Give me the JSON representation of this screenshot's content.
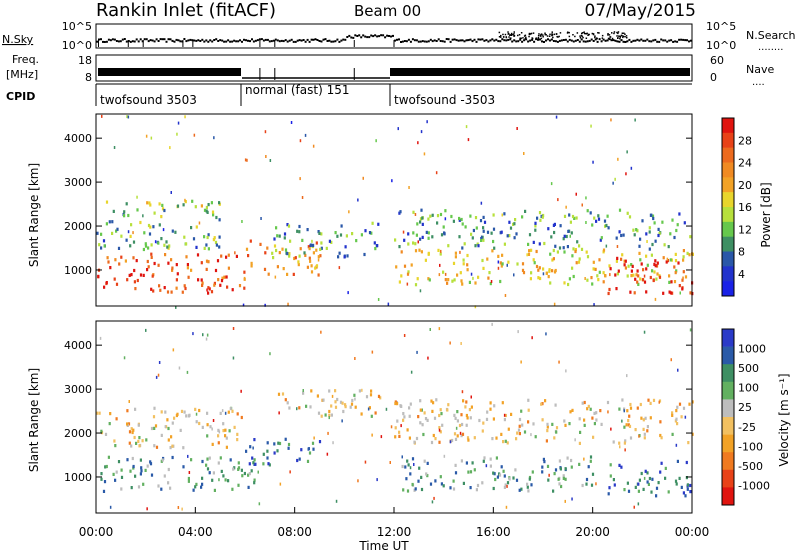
{
  "header": {
    "station": "Rankin Inlet (fitACF)",
    "beam": "Beam 00",
    "date": "07/May/2015"
  },
  "top_panels": {
    "nsky_label": "N.Sky",
    "nsky_ticks": [
      "10^5",
      "10^0"
    ],
    "nsky_right_ticks": [
      "10^5",
      "10^0"
    ],
    "nsearch_label": "N.Search",
    "freq_label_1": "Freq.",
    "freq_label_2": "[MHz]",
    "freq_ticks": [
      "18",
      "8"
    ],
    "nave_ticks": [
      "60",
      "0"
    ],
    "nave_label": "Nave",
    "cpid_label": "CPID",
    "cpid_segments": [
      {
        "label": "twofsound 3503",
        "start_h": 0,
        "end_h": 6
      },
      {
        "label": "normal (fast) 151",
        "start_h": 6,
        "end_h": 12
      },
      {
        "label": "twofsound -3503",
        "start_h": 12,
        "end_h": 24
      }
    ]
  },
  "chart_data": [
    {
      "type": "heatmap",
      "name": "power",
      "ylabel": "Slant Range [km]",
      "xlim": [
        0,
        24
      ],
      "ylim": [
        180,
        4550
      ],
      "yticks": [
        1000,
        2000,
        3000,
        4000
      ],
      "colorbar": {
        "label": "Power [dB]",
        "ticks": [
          "4",
          "8",
          "12",
          "16",
          "20",
          "24",
          "28"
        ],
        "colors": [
          "#1a22e6",
          "#2233cc",
          "#2a57a8",
          "#3e8f63",
          "#66c84c",
          "#b7e03c",
          "#e8d52c",
          "#f2a226",
          "#f08a22",
          "#ec6a1e",
          "#e84218",
          "#e0140f"
        ]
      },
      "features": [
        {
          "h0": 0.0,
          "h1": 6.2,
          "r0": 500,
          "r1": 1400,
          "level": 0.85
        },
        {
          "h0": 0.0,
          "h1": 5.0,
          "r0": 1400,
          "r1": 2000,
          "level": 0.35
        },
        {
          "h0": 0.3,
          "h1": 5.0,
          "r0": 2000,
          "r1": 2600,
          "level": 0.4
        },
        {
          "h0": 6.0,
          "h1": 9.0,
          "r0": 900,
          "r1": 1700,
          "level": 0.7
        },
        {
          "h0": 7.0,
          "h1": 11.5,
          "r0": 1300,
          "r1": 2100,
          "level": 0.3
        },
        {
          "h0": 12.0,
          "h1": 24.0,
          "r0": 700,
          "r1": 1500,
          "level": 0.55
        },
        {
          "h0": 12.0,
          "h1": 24.0,
          "r0": 1500,
          "r1": 2400,
          "level": 0.3
        },
        {
          "h0": 20.5,
          "h1": 24.0,
          "r0": 450,
          "r1": 1300,
          "level": 0.95
        }
      ]
    },
    {
      "type": "heatmap",
      "name": "velocity",
      "ylabel": "Slant Range [km]",
      "xlabel": "Time UT",
      "xlim": [
        0,
        24
      ],
      "ylim": [
        180,
        4550
      ],
      "yticks": [
        1000,
        2000,
        3000,
        4000
      ],
      "xticks": [
        "00:00",
        "04:00",
        "08:00",
        "12:00",
        "16:00",
        "20:00",
        "00:00"
      ],
      "colorbar": {
        "label": "Velocity [m s⁻¹]",
        "ticks": [
          "1000",
          "500",
          "100",
          "25",
          "-25",
          "-100",
          "-500",
          "-1000"
        ],
        "colors": [
          "#2a3ac8",
          "#2a5aa8",
          "#3e8f63",
          "#62b060",
          "#bdbdbd",
          "#f2c060",
          "#f2a226",
          "#f07a20",
          "#e84218",
          "#e0140f"
        ]
      },
      "features": [
        {
          "h0": 0.0,
          "h1": 6.5,
          "r0": 700,
          "r1": 1500,
          "level": 0.7
        },
        {
          "h0": 0.0,
          "h1": 6.0,
          "r0": 1700,
          "r1": 2600,
          "level": 0.45
        },
        {
          "h0": 6.0,
          "h1": 9.0,
          "r0": 1300,
          "r1": 1900,
          "level": 0.8
        },
        {
          "h0": 7.0,
          "h1": 11.5,
          "r0": 2400,
          "r1": 3000,
          "level": 0.45
        },
        {
          "h0": 12.0,
          "h1": 24.0,
          "r0": 1800,
          "r1": 2800,
          "level": 0.45
        },
        {
          "h0": 12.0,
          "h1": 20.0,
          "r0": 700,
          "r1": 1500,
          "level": 0.7
        },
        {
          "h0": 20.5,
          "h1": 24.0,
          "r0": 600,
          "r1": 1400,
          "level": 0.82
        }
      ]
    }
  ]
}
